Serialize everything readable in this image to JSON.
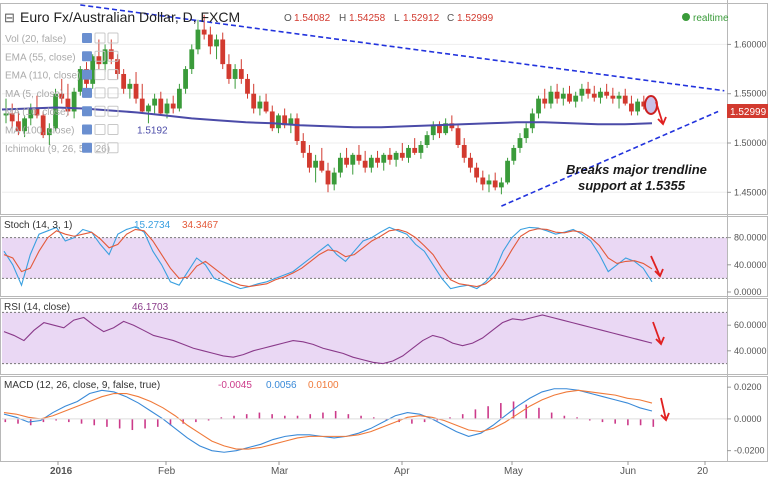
{
  "header": {
    "collapse_glyph": "⊟",
    "title": "Euro Fx/Australian Dollar, D, FXCM",
    "ohlc": {
      "o_label": "O",
      "o": "1.54082",
      "h_label": "H",
      "h": "1.54258",
      "l_label": "L",
      "l": "1.52912",
      "c_label": "C",
      "c": "1.52999"
    },
    "realtime_label": "realtime"
  },
  "studies": [
    {
      "label": "Vol (20, false)",
      "value": ""
    },
    {
      "label": "EMA (55, close)",
      "value": ""
    },
    {
      "label": "EMA (110, close)",
      "value": ""
    },
    {
      "label": "MA (5, close)",
      "value": ""
    },
    {
      "label": "MA (10, close)",
      "value": ""
    },
    {
      "label": "MA (100, close)",
      "value": "1.5192"
    },
    {
      "label": "Ichimoku (9, 26, 52, 26)",
      "value": ""
    }
  ],
  "annotation": {
    "line1": "Breaks major trendline",
    "line2": "support at 1.5355"
  },
  "price_tag": "1.52999",
  "colors": {
    "up": "#3a9b3a",
    "down": "#d23a2f",
    "ma": "#4b4ba8",
    "trend": "#2233dd",
    "stoch_k": "#3aa0e0",
    "stoch_d": "#e35a3a",
    "rsi": "#8a3a8a",
    "macd_line": "#3a8ad8",
    "signal": "#f07a3a",
    "hist": "#cc3a8a",
    "arrow": "#e02020",
    "band": "#ead8f4"
  },
  "chart_data": [
    {
      "type": "candlestick",
      "name": "EURAUD Daily",
      "yticks": [
        "1.60000",
        "1.55000",
        "1.50000",
        "1.45000"
      ],
      "ylim": [
        1.428,
        1.642
      ],
      "xticks": [
        "2016",
        "Feb",
        "Mar",
        "Apr",
        "May",
        "Jun",
        "20"
      ],
      "candles": [
        [
          1.528,
          1.545,
          1.52,
          1.53
        ],
        [
          1.53,
          1.54,
          1.515,
          1.522
        ],
        [
          1.522,
          1.532,
          1.508,
          1.512
        ],
        [
          1.512,
          1.528,
          1.506,
          1.525
        ],
        [
          1.525,
          1.54,
          1.518,
          1.535
        ],
        [
          1.535,
          1.548,
          1.525,
          1.528
        ],
        [
          1.528,
          1.532,
          1.505,
          1.508
        ],
        [
          1.508,
          1.52,
          1.498,
          1.515
        ],
        [
          1.515,
          1.555,
          1.512,
          1.55
        ],
        [
          1.55,
          1.565,
          1.54,
          1.545
        ],
        [
          1.545,
          1.56,
          1.528,
          1.532
        ],
        [
          1.532,
          1.556,
          1.525,
          1.552
        ],
        [
          1.552,
          1.578,
          1.548,
          1.575
        ],
        [
          1.575,
          1.582,
          1.555,
          1.56
        ],
        [
          1.56,
          1.59,
          1.555,
          1.588
        ],
        [
          1.588,
          1.605,
          1.575,
          1.58
        ],
        [
          1.58,
          1.6,
          1.572,
          1.595
        ],
        [
          1.595,
          1.605,
          1.58,
          1.585
        ],
        [
          1.585,
          1.59,
          1.565,
          1.57
        ],
        [
          1.57,
          1.575,
          1.55,
          1.555
        ],
        [
          1.555,
          1.565,
          1.545,
          1.56
        ],
        [
          1.56,
          1.572,
          1.54,
          1.545
        ],
        [
          1.545,
          1.56,
          1.53,
          1.532
        ],
        [
          1.532,
          1.54,
          1.52,
          1.538
        ],
        [
          1.538,
          1.55,
          1.53,
          1.545
        ],
        [
          1.545,
          1.552,
          1.528,
          1.53
        ],
        [
          1.53,
          1.545,
          1.525,
          1.54
        ],
        [
          1.54,
          1.548,
          1.53,
          1.535
        ],
        [
          1.535,
          1.56,
          1.532,
          1.555
        ],
        [
          1.555,
          1.578,
          1.55,
          1.575
        ],
        [
          1.575,
          1.6,
          1.57,
          1.595
        ],
        [
          1.595,
          1.625,
          1.59,
          1.615
        ],
        [
          1.615,
          1.63,
          1.605,
          1.61
        ],
        [
          1.61,
          1.618,
          1.59,
          1.598
        ],
        [
          1.598,
          1.61,
          1.585,
          1.605
        ],
        [
          1.605,
          1.612,
          1.575,
          1.58
        ],
        [
          1.58,
          1.59,
          1.56,
          1.565
        ],
        [
          1.565,
          1.58,
          1.555,
          1.575
        ],
        [
          1.575,
          1.585,
          1.56,
          1.565
        ],
        [
          1.565,
          1.57,
          1.545,
          1.55
        ],
        [
          1.55,
          1.56,
          1.53,
          1.535
        ],
        [
          1.535,
          1.548,
          1.528,
          1.542
        ],
        [
          1.542,
          1.55,
          1.53,
          1.532
        ],
        [
          1.532,
          1.538,
          1.512,
          1.515
        ],
        [
          1.515,
          1.53,
          1.51,
          1.528
        ],
        [
          1.528,
          1.535,
          1.515,
          1.518
        ],
        [
          1.518,
          1.53,
          1.51,
          1.525
        ],
        [
          1.525,
          1.53,
          1.498,
          1.502
        ],
        [
          1.502,
          1.51,
          1.485,
          1.49
        ],
        [
          1.49,
          1.498,
          1.47,
          1.475
        ],
        [
          1.475,
          1.488,
          1.46,
          1.482
        ],
        [
          1.482,
          1.495,
          1.47,
          1.472
        ],
        [
          1.472,
          1.48,
          1.45,
          1.458
        ],
        [
          1.458,
          1.475,
          1.452,
          1.47
        ],
        [
          1.47,
          1.49,
          1.465,
          1.485
        ],
        [
          1.485,
          1.495,
          1.475,
          1.478
        ],
        [
          1.478,
          1.49,
          1.468,
          1.488
        ],
        [
          1.488,
          1.498,
          1.478,
          1.482
        ],
        [
          1.482,
          1.492,
          1.47,
          1.475
        ],
        [
          1.475,
          1.488,
          1.47,
          1.485
        ],
        [
          1.485,
          1.492,
          1.475,
          1.48
        ],
        [
          1.48,
          1.49,
          1.472,
          1.488
        ],
        [
          1.488,
          1.495,
          1.478,
          1.483
        ],
        [
          1.483,
          1.492,
          1.476,
          1.49
        ],
        [
          1.49,
          1.5,
          1.482,
          1.485
        ],
        [
          1.485,
          1.498,
          1.48,
          1.495
        ],
        [
          1.495,
          1.505,
          1.488,
          1.49
        ],
        [
          1.49,
          1.502,
          1.484,
          1.498
        ],
        [
          1.498,
          1.512,
          1.495,
          1.508
        ],
        [
          1.508,
          1.522,
          1.503,
          1.518
        ],
        [
          1.518,
          1.522,
          1.505,
          1.51
        ],
        [
          1.51,
          1.525,
          1.508,
          1.52
        ],
        [
          1.52,
          1.528,
          1.512,
          1.515
        ],
        [
          1.515,
          1.518,
          1.495,
          1.498
        ],
        [
          1.498,
          1.505,
          1.48,
          1.485
        ],
        [
          1.485,
          1.49,
          1.47,
          1.475
        ],
        [
          1.475,
          1.48,
          1.46,
          1.465
        ],
        [
          1.465,
          1.472,
          1.452,
          1.458
        ],
        [
          1.458,
          1.468,
          1.45,
          1.462
        ],
        [
          1.462,
          1.47,
          1.452,
          1.455
        ],
        [
          1.455,
          1.465,
          1.448,
          1.46
        ],
        [
          1.46,
          1.485,
          1.458,
          1.482
        ],
        [
          1.482,
          1.498,
          1.478,
          1.495
        ],
        [
          1.495,
          1.51,
          1.49,
          1.505
        ],
        [
          1.505,
          1.52,
          1.5,
          1.515
        ],
        [
          1.515,
          1.535,
          1.51,
          1.53
        ],
        [
          1.53,
          1.548,
          1.525,
          1.545
        ],
        [
          1.545,
          1.555,
          1.535,
          1.54
        ],
        [
          1.54,
          1.558,
          1.535,
          1.552
        ],
        [
          1.552,
          1.56,
          1.54,
          1.545
        ],
        [
          1.545,
          1.556,
          1.538,
          1.55
        ],
        [
          1.55,
          1.558,
          1.54,
          1.542
        ],
        [
          1.542,
          1.552,
          1.536,
          1.548
        ],
        [
          1.548,
          1.56,
          1.542,
          1.555
        ],
        [
          1.555,
          1.562,
          1.545,
          1.55
        ],
        [
          1.55,
          1.558,
          1.542,
          1.546
        ],
        [
          1.546,
          1.556,
          1.54,
          1.552
        ],
        [
          1.552,
          1.56,
          1.545,
          1.548
        ],
        [
          1.548,
          1.556,
          1.54,
          1.545
        ],
        [
          1.545,
          1.552,
          1.535,
          1.548
        ],
        [
          1.548,
          1.555,
          1.538,
          1.54
        ],
        [
          1.54,
          1.548,
          1.528,
          1.532
        ],
        [
          1.532,
          1.545,
          1.528,
          1.542
        ],
        [
          1.542,
          1.548,
          1.534,
          1.537
        ],
        [
          1.54,
          1.543,
          1.529,
          1.53
        ]
      ],
      "ma100": [
        1.534,
        1.535,
        1.536,
        1.535,
        1.533,
        1.531,
        1.528,
        1.525,
        1.523,
        1.521,
        1.52,
        1.518,
        1.517,
        1.516,
        1.516,
        1.517,
        1.518,
        1.519,
        1.52,
        1.521,
        1.521,
        1.52,
        1.519,
        1.519,
        1.52
      ],
      "trendlines": [
        {
          "from": [
            12,
            1.64
          ],
          "to": [
            116,
            1.553
          ]
        },
        {
          "from": [
            80,
            1.436
          ],
          "to": [
            115,
            1.532
          ]
        }
      ]
    },
    {
      "type": "line",
      "name": "Stoch (14, 3, 1)",
      "title": "Stoch (14, 3, 1)",
      "values_text": [
        "15.2734",
        "34.3467"
      ],
      "yticks": [
        "80.0000",
        "40.0000",
        "0.0000"
      ],
      "ylim": [
        0,
        100
      ],
      "band": [
        20,
        80
      ],
      "series": [
        {
          "name": "%K",
          "values": [
            60,
            40,
            10,
            55,
            85,
            90,
            95,
            75,
            80,
            92,
            88,
            70,
            55,
            85,
            92,
            96,
            88,
            60,
            40,
            15,
            10,
            30,
            50,
            40,
            20,
            15,
            10,
            5,
            8,
            12,
            15,
            20,
            25,
            30,
            40,
            50,
            60,
            70,
            55,
            45,
            60,
            75,
            80,
            88,
            95,
            90,
            85,
            70,
            60,
            40,
            20,
            5,
            8,
            10,
            5,
            15,
            30,
            60,
            80,
            92,
            95,
            94,
            90,
            85,
            88,
            92,
            85,
            75,
            55,
            30,
            40,
            50,
            45,
            35,
            15
          ]
        },
        {
          "name": "%D",
          "values": [
            55,
            50,
            30,
            35,
            60,
            80,
            90,
            85,
            82,
            85,
            88,
            78,
            65,
            70,
            85,
            92,
            90,
            75,
            55,
            35,
            20,
            22,
            38,
            45,
            35,
            25,
            15,
            10,
            8,
            10,
            12,
            18,
            22,
            28,
            35,
            45,
            55,
            62,
            60,
            52,
            55,
            65,
            75,
            82,
            90,
            92,
            88,
            80,
            68,
            55,
            35,
            18,
            12,
            10,
            8,
            12,
            22,
            40,
            62,
            82,
            90,
            93,
            92,
            88,
            87,
            90,
            88,
            80,
            68,
            50,
            42,
            45,
            46,
            42,
            34
          ]
        }
      ]
    },
    {
      "type": "line",
      "name": "RSI (14, close)",
      "title": "RSI (14, close)",
      "values_text": [
        "46.1703"
      ],
      "yticks": [
        "60.0000",
        "40.0000"
      ],
      "ylim": [
        25,
        75
      ],
      "band": [
        30,
        70
      ],
      "series": [
        {
          "name": "RSI",
          "values": [
            55,
            52,
            48,
            56,
            62,
            60,
            58,
            64,
            66,
            60,
            55,
            58,
            63,
            60,
            56,
            52,
            50,
            48,
            45,
            42,
            40,
            38,
            36,
            35,
            37,
            40,
            42,
            44,
            46,
            48,
            47,
            45,
            42,
            40,
            38,
            35,
            33,
            31,
            30,
            32,
            36,
            42,
            48,
            52,
            50,
            46,
            44,
            46,
            50,
            56,
            62,
            65,
            64,
            66,
            68,
            66,
            64,
            62,
            60,
            58,
            56,
            54,
            52,
            50,
            48,
            46
          ]
        }
      ]
    },
    {
      "type": "line",
      "name": "MACD (12, 26, close, 9, false, true)",
      "title": "MACD (12, 26, close, 9, false, true)",
      "values_text": [
        "-0.0045",
        "0.0056",
        "0.0100"
      ],
      "yticks": [
        "0.0200",
        "0.0000",
        "-0.0200"
      ],
      "ylim": [
        -0.024,
        0.022
      ],
      "series": [
        {
          "name": "Histogram",
          "values": [
            -0.002,
            -0.003,
            -0.004,
            -0.002,
            -0.001,
            -0.002,
            -0.003,
            -0.004,
            -0.005,
            -0.006,
            -0.007,
            -0.006,
            -0.005,
            -0.004,
            -0.003,
            -0.002,
            -0.001,
            0.001,
            0.002,
            0.003,
            0.004,
            0.003,
            0.002,
            0.002,
            0.003,
            0.004,
            0.005,
            0.003,
            0.002,
            0.001,
            -0.001,
            -0.002,
            -0.003,
            -0.002,
            -0.001,
            0.001,
            0.003,
            0.006,
            0.008,
            0.01,
            0.011,
            0.009,
            0.007,
            0.004,
            0.002,
            0.001,
            -0.001,
            -0.002,
            -0.003,
            -0.004,
            -0.004,
            -0.005
          ]
        },
        {
          "name": "MACD",
          "values": [
            0.003,
            0.001,
            -0.002,
            -0.001,
            0.004,
            0.008,
            0.011,
            0.016,
            0.018,
            0.017,
            0.014,
            0.01,
            0.005,
            0.0,
            -0.006,
            -0.012,
            -0.017,
            -0.02,
            -0.021,
            -0.02,
            -0.018,
            -0.016,
            -0.013,
            -0.011,
            -0.01,
            -0.01,
            -0.011,
            -0.012,
            -0.011,
            -0.009,
            -0.006,
            -0.002,
            0.002,
            0.004,
            0.003,
            0.0,
            -0.004,
            -0.008,
            -0.011,
            -0.009,
            -0.004,
            0.002,
            0.008,
            0.013,
            0.017,
            0.019,
            0.019,
            0.018,
            0.016,
            0.014,
            0.012,
            0.01,
            0.007,
            0.005
          ]
        },
        {
          "name": "Signal",
          "values": [
            0.004,
            0.003,
            0.001,
            0.0,
            0.002,
            0.005,
            0.008,
            0.011,
            0.014,
            0.016,
            0.016,
            0.014,
            0.011,
            0.007,
            0.002,
            -0.004,
            -0.009,
            -0.014,
            -0.017,
            -0.019,
            -0.019,
            -0.018,
            -0.016,
            -0.014,
            -0.012,
            -0.011,
            -0.011,
            -0.011,
            -0.011,
            -0.01,
            -0.008,
            -0.005,
            -0.002,
            0.001,
            0.002,
            0.001,
            -0.001,
            -0.004,
            -0.007,
            -0.008,
            -0.006,
            -0.002,
            0.003,
            0.008,
            0.012,
            0.015,
            0.017,
            0.018,
            0.017,
            0.016,
            0.015,
            0.013,
            0.012,
            0.01
          ]
        }
      ]
    }
  ]
}
